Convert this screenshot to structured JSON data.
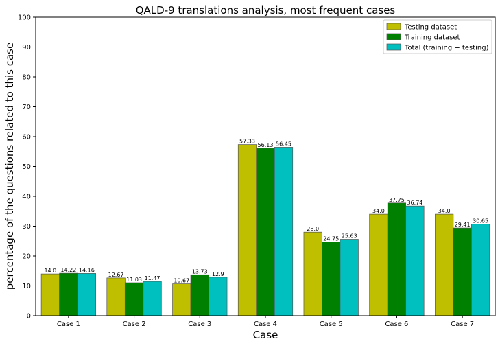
{
  "chart_data": {
    "type": "bar",
    "title": "QALD-9 translations analysis, most frequent cases",
    "xlabel": "Case",
    "ylabel": "percentage of the questions related to this case",
    "ylim": [
      0,
      100
    ],
    "yticks": [
      0,
      10,
      20,
      30,
      40,
      50,
      60,
      70,
      80,
      90,
      100
    ],
    "categories": [
      "Case 1",
      "Case 2",
      "Case 3",
      "Case 4",
      "Case 5",
      "Case 6",
      "Case 7"
    ],
    "series": [
      {
        "name": "Testing dataset",
        "color": "#bfbf00",
        "values": [
          14.0,
          12.67,
          10.67,
          57.33,
          28.0,
          34.0,
          34.0
        ],
        "labels": [
          "14.0",
          "12.67",
          "10.67",
          "57.33",
          "28.0",
          "34.0",
          "34.0"
        ]
      },
      {
        "name": "Training dataset",
        "color": "#008000",
        "values": [
          14.22,
          11.03,
          13.73,
          56.13,
          24.75,
          37.75,
          29.41
        ],
        "labels": [
          "14.22",
          "11.03",
          "13.73",
          "56.13",
          "24.75",
          "37.75",
          "29.41"
        ]
      },
      {
        "name": "Total (training + testing)",
        "color": "#00bfbf",
        "values": [
          14.16,
          11.47,
          12.9,
          56.45,
          25.63,
          36.74,
          30.65
        ],
        "labels": [
          "14.16",
          "11.47",
          "12.9",
          "56.45",
          "25.63",
          "36.74",
          "30.65"
        ]
      }
    ],
    "legend_position": "top-right",
    "grid": false
  }
}
